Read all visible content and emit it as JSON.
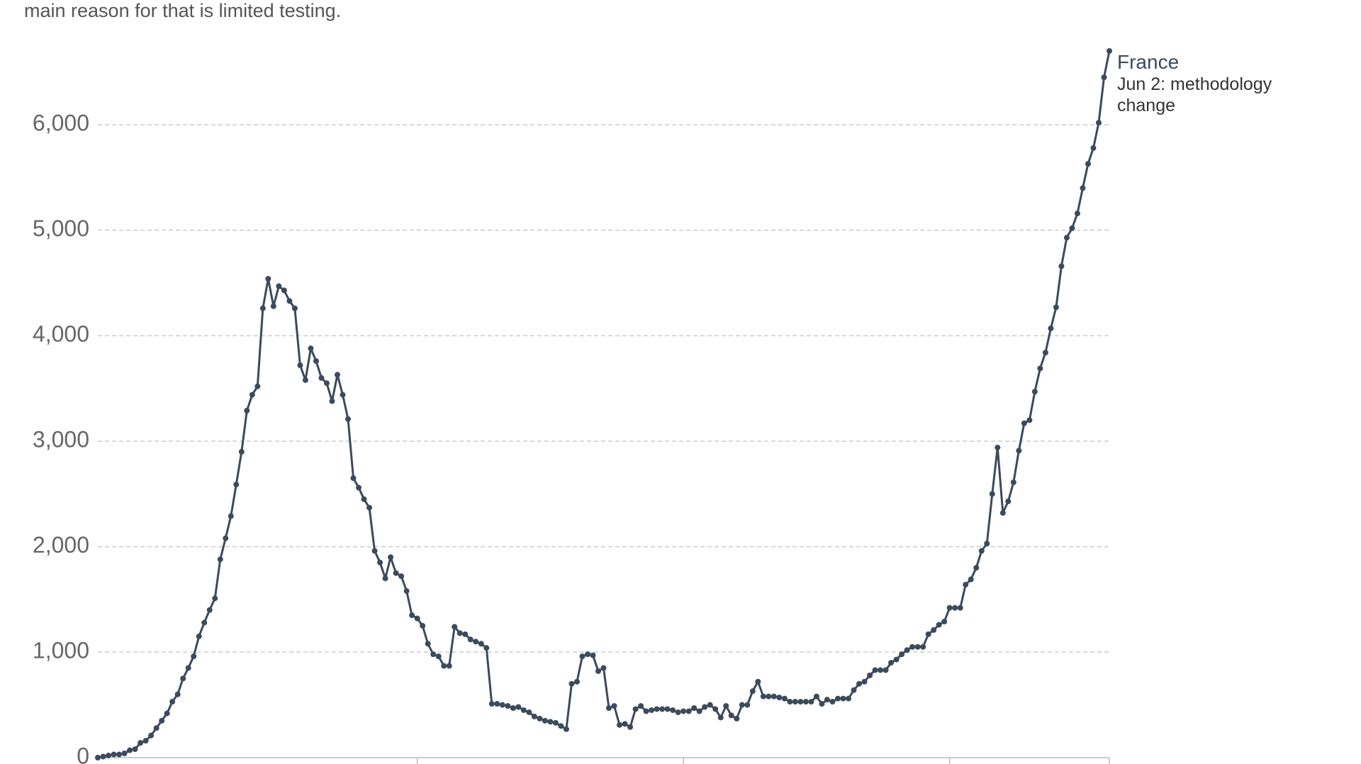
{
  "chart_data": {
    "type": "line",
    "subtitle": "main reason for that is limited testing.",
    "annotation": "Jun 2: methodology change",
    "xlim": [
      0,
      190
    ],
    "xticks": [
      60,
      110,
      160,
      190
    ],
    "ylim": [
      0,
      6700
    ],
    "yticks": [
      0,
      {
        "value": 1000,
        "label": "1,000"
      },
      {
        "value": 2000,
        "label": "2,000"
      },
      {
        "value": 3000,
        "label": "3,000"
      },
      {
        "value": 4000,
        "label": "4,000"
      },
      {
        "value": 5000,
        "label": "5,000"
      },
      {
        "value": 6000,
        "label": "6,000"
      }
    ],
    "grid": true,
    "series": [
      {
        "name": "France",
        "color": "#3c4a5c",
        "values": [
          0,
          10,
          20,
          30,
          30,
          40,
          70,
          80,
          140,
          160,
          210,
          280,
          350,
          420,
          530,
          600,
          750,
          850,
          960,
          1150,
          1280,
          1400,
          1510,
          1880,
          2080,
          2290,
          2590,
          2900,
          3290,
          3440,
          3520,
          4260,
          4540,
          4280,
          4470,
          4430,
          4330,
          4260,
          3720,
          3580,
          3880,
          3760,
          3600,
          3550,
          3380,
          3630,
          3440,
          3210,
          2650,
          2560,
          2450,
          2370,
          1960,
          1850,
          1700,
          1900,
          1750,
          1720,
          1580,
          1350,
          1320,
          1250,
          1080,
          980,
          960,
          870,
          870,
          1240,
          1180,
          1170,
          1120,
          1100,
          1080,
          1040,
          510,
          510,
          500,
          490,
          470,
          480,
          450,
          430,
          390,
          370,
          350,
          340,
          330,
          300,
          270,
          700,
          720,
          960,
          980,
          970,
          820,
          850,
          470,
          490,
          310,
          320,
          290,
          460,
          490,
          440,
          450,
          460,
          460,
          460,
          450,
          430,
          440,
          440,
          470,
          440,
          480,
          500,
          460,
          380,
          490,
          400,
          370,
          500,
          500,
          630,
          720,
          580,
          580,
          580,
          570,
          560,
          530,
          530,
          530,
          530,
          530,
          580,
          510,
          550,
          530,
          560,
          560,
          560,
          640,
          700,
          720,
          780,
          830,
          830,
          830,
          900,
          930,
          980,
          1020,
          1050,
          1050,
          1050,
          1170,
          1210,
          1260,
          1290,
          1420,
          1420,
          1420,
          1640,
          1690,
          1800,
          1960,
          2030,
          2500,
          2940,
          2320,
          2430,
          2610,
          2910,
          3170,
          3200,
          3470,
          3690,
          3840,
          4070,
          4270,
          4660,
          4930,
          5020,
          5160,
          5400,
          5630,
          5780,
          6020,
          6450,
          6700
        ]
      }
    ]
  }
}
